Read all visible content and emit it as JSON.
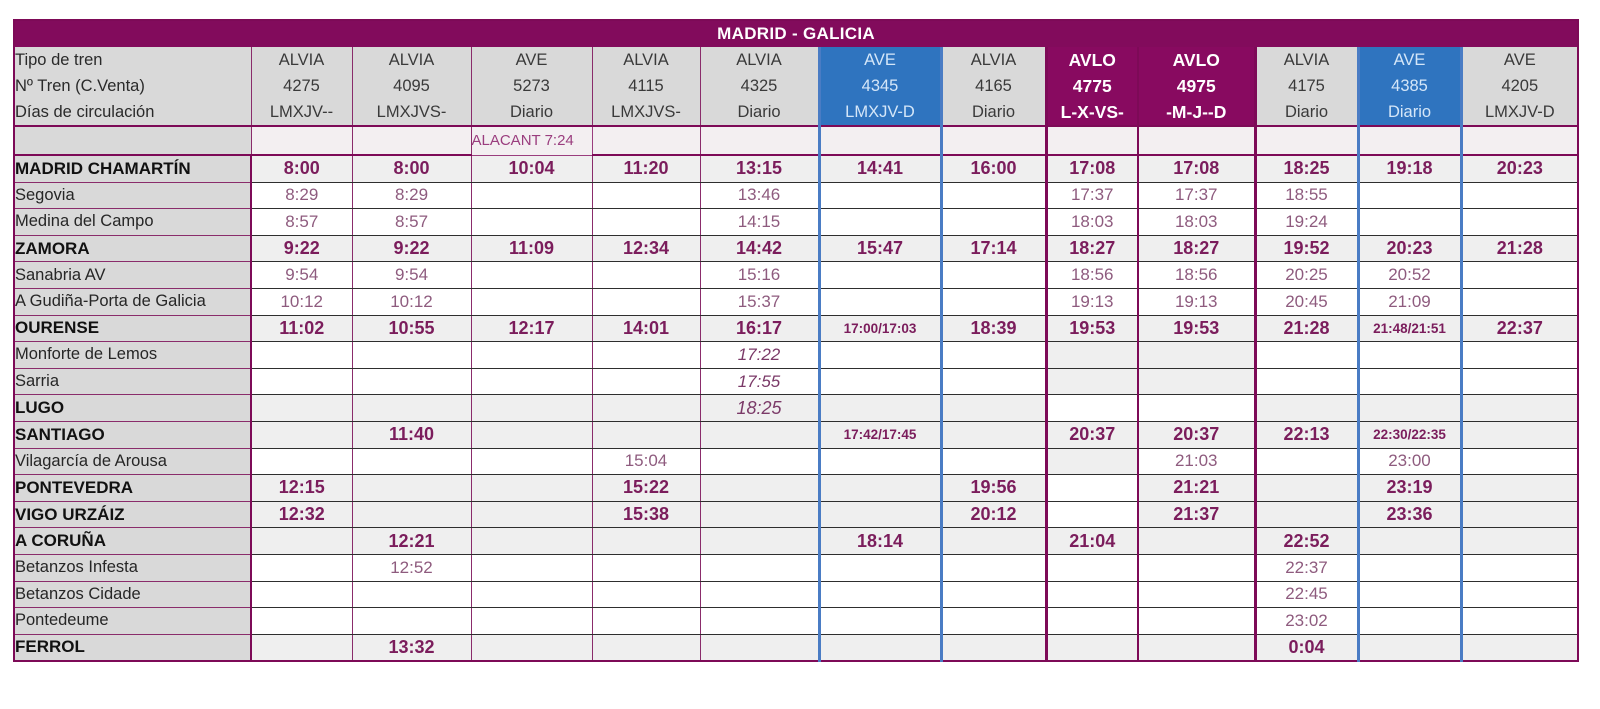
{
  "title": "MADRID - GALICIA",
  "header_labels": {
    "train_type": "Tipo de tren",
    "train_number": "Nº Tren (C.Venta)",
    "days": "Días de circulación"
  },
  "colors": {
    "brand_purple": "#820b5c",
    "ave_blue": "#2f74bf",
    "time_purple": "#7b1d5c"
  },
  "trains": [
    {
      "type": "ALVIA",
      "number": "4275",
      "days": "LMXJV--",
      "style": "gray"
    },
    {
      "type": "ALVIA",
      "number": "4095",
      "days": "LMXJVS-",
      "style": "gray"
    },
    {
      "type": "AVE",
      "number": "5273",
      "days": "Diario",
      "style": "gray"
    },
    {
      "type": "ALVIA",
      "number": "4115",
      "days": "LMXJVS-",
      "style": "gray"
    },
    {
      "type": "ALVIA",
      "number": "4325",
      "days": "Diario",
      "style": "gray"
    },
    {
      "type": "AVE",
      "number": "4345",
      "days": "LMXJV-D",
      "style": "blue"
    },
    {
      "type": "ALVIA",
      "number": "4165",
      "days": "Diario",
      "style": "gray"
    },
    {
      "type": "AVLO",
      "number": "4775",
      "days": "L-X-VS-",
      "style": "avlo"
    },
    {
      "type": "AVLO",
      "number": "4975",
      "days": "-M-J--D",
      "style": "avlo"
    },
    {
      "type": "ALVIA",
      "number": "4175",
      "days": "Diario",
      "style": "gray"
    },
    {
      "type": "AVE",
      "number": "4385",
      "days": "Diario",
      "style": "blue"
    },
    {
      "type": "AVE",
      "number": "4205",
      "days": "LMXJV-D",
      "style": "gray"
    }
  ],
  "origin_notes": [
    "",
    "",
    "ALACANT 7:24",
    "",
    "",
    "",
    "",
    "",
    "",
    "",
    "",
    ""
  ],
  "stations": [
    {
      "name": "MADRID CHAMARTÍN",
      "main": true,
      "times": [
        "8:00",
        "8:00",
        "10:04",
        "11:20",
        "13:15",
        "14:41",
        "16:00",
        "17:08",
        "17:08",
        "18:25",
        "19:18",
        "20:23"
      ]
    },
    {
      "name": "Segovia",
      "main": false,
      "times": [
        "8:29",
        "8:29",
        "",
        "",
        "13:46",
        "",
        "",
        "17:37",
        "17:37",
        "18:55",
        "",
        ""
      ]
    },
    {
      "name": "Medina del Campo",
      "main": false,
      "times": [
        "8:57",
        "8:57",
        "",
        "",
        "14:15",
        "",
        "",
        "18:03",
        "18:03",
        "19:24",
        "",
        ""
      ]
    },
    {
      "name": "ZAMORA",
      "main": true,
      "times": [
        "9:22",
        "9:22",
        "11:09",
        "12:34",
        "14:42",
        "15:47",
        "17:14",
        "18:27",
        "18:27",
        "19:52",
        "20:23",
        "21:28"
      ]
    },
    {
      "name": "Sanabria AV",
      "main": false,
      "times": [
        "9:54",
        "9:54",
        "",
        "",
        "15:16",
        "",
        "",
        "18:56",
        "18:56",
        "20:25",
        "20:52",
        ""
      ]
    },
    {
      "name": "A Gudiña-Porta de Galicia",
      "main": false,
      "times": [
        "10:12",
        "10:12",
        "",
        "",
        "15:37",
        "",
        "",
        "19:13",
        "19:13",
        "20:45",
        "21:09",
        ""
      ]
    },
    {
      "name": "OURENSE",
      "main": true,
      "times": [
        "11:02",
        "10:55",
        "12:17",
        "14:01",
        "16:17",
        "17:00/17:03",
        "18:39",
        "19:53",
        "19:53",
        "21:28",
        "21:48/21:51",
        "22:37"
      ]
    },
    {
      "name": "Monforte de Lemos",
      "main": false,
      "italic_cols": [
        4
      ],
      "times": [
        "",
        "",
        "",
        "",
        "17:22",
        "",
        "",
        "",
        "",
        "",
        "",
        ""
      ]
    },
    {
      "name": "Sarria",
      "main": false,
      "italic_cols": [
        4
      ],
      "times": [
        "",
        "",
        "",
        "",
        "17:55",
        "",
        "",
        "",
        "",
        "",
        "",
        ""
      ]
    },
    {
      "name": "LUGO",
      "main": true,
      "italic_cols": [
        4
      ],
      "times": [
        "",
        "",
        "",
        "",
        "18:25",
        "",
        "",
        "",
        "",
        "",
        "",
        ""
      ]
    },
    {
      "name": "SANTIAGO",
      "main": true,
      "times": [
        "",
        "11:40",
        "",
        "",
        "",
        "17:42/17:45",
        "",
        "20:37",
        "20:37",
        "22:13",
        "22:30/22:35",
        ""
      ]
    },
    {
      "name": "Vilagarcía de Arousa",
      "main": false,
      "times": [
        "",
        "",
        "",
        "15:04",
        "",
        "",
        "",
        "",
        "21:03",
        "",
        "23:00",
        ""
      ]
    },
    {
      "name": "PONTEVEDRA",
      "main": true,
      "times": [
        "12:15",
        "",
        "",
        "15:22",
        "",
        "",
        "19:56",
        "",
        "21:21",
        "",
        "23:19",
        ""
      ]
    },
    {
      "name": "VIGO URZÁIZ",
      "main": true,
      "times": [
        "12:32",
        "",
        "",
        "15:38",
        "",
        "",
        "20:12",
        "",
        "21:37",
        "",
        "23:36",
        ""
      ]
    },
    {
      "name": "A CORUÑA",
      "main": true,
      "times": [
        "",
        "12:21",
        "",
        "",
        "",
        "18:14",
        "",
        "21:04",
        "",
        "22:52",
        "",
        ""
      ]
    },
    {
      "name": "Betanzos Infesta",
      "main": false,
      "times": [
        "",
        "12:52",
        "",
        "",
        "",
        "",
        "",
        "",
        "",
        "22:37",
        "",
        ""
      ]
    },
    {
      "name": "Betanzos Cidade",
      "main": false,
      "times": [
        "",
        "",
        "",
        "",
        "",
        "",
        "",
        "",
        "",
        "22:45",
        "",
        ""
      ]
    },
    {
      "name": "Pontedeume",
      "main": false,
      "times": [
        "",
        "",
        "",
        "",
        "",
        "",
        "",
        "",
        "",
        "23:02",
        "",
        ""
      ]
    },
    {
      "name": "FERROL",
      "main": true,
      "times": [
        "",
        "13:32",
        "",
        "",
        "",
        "",
        "",
        "",
        "",
        "0:04",
        "",
        ""
      ]
    }
  ]
}
